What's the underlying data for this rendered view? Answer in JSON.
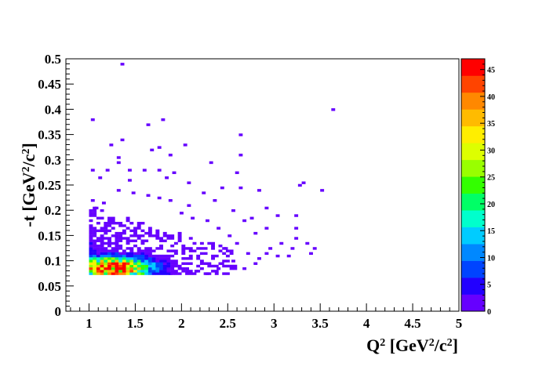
{
  "chart_data": {
    "type": "heatmap",
    "title": "",
    "xlabel": "Q^2 [GeV^2/c^2]",
    "ylabel": "-t [GeV^2/c^2]",
    "xlim": [
      0.75,
      5.0
    ],
    "ylim": [
      0.0,
      0.5
    ],
    "zlim": [
      0,
      47
    ],
    "bin_width_x": 0.04,
    "bin_width_y": 0.005,
    "x_ticks": [
      "1",
      "1.5",
      "2",
      "2.5",
      "3",
      "3.5",
      "4",
      "4.5",
      "5"
    ],
    "x_tick_values": [
      1,
      1.5,
      2,
      2.5,
      3,
      3.5,
      4,
      4.5,
      5
    ],
    "y_ticks": [
      "0",
      "0.05",
      "0.1",
      "0.15",
      "0.2",
      "0.25",
      "0.3",
      "0.35",
      "0.4",
      "0.45",
      "0.5"
    ],
    "y_tick_values": [
      0,
      0.05,
      0.1,
      0.15,
      0.2,
      0.25,
      0.3,
      0.35,
      0.4,
      0.45,
      0.5
    ],
    "palette_ticks": [
      "0",
      "5",
      "10",
      "15",
      "20",
      "25",
      "30",
      "35",
      "40",
      "45"
    ],
    "palette_tick_values": [
      0,
      5,
      10,
      15,
      20,
      25,
      30,
      35,
      40,
      45
    ],
    "palette_colors": [
      "#6600ff",
      "#2200ff",
      "#0044ff",
      "#0088ff",
      "#00ccff",
      "#00ffcc",
      "#00ff66",
      "#33ff00",
      "#99ff00",
      "#ddff00",
      "#ffee00",
      "#ffbb00",
      "#ff8800",
      "#ff4400",
      "#ff0000"
    ],
    "grid": false,
    "legend": "color palette, right",
    "points": [
      [
        1.34,
        0.487,
        1
      ],
      [
        1.02,
        0.377,
        1
      ],
      [
        1.62,
        0.367,
        1
      ],
      [
        1.78,
        0.377,
        1
      ],
      [
        3.62,
        0.397,
        1
      ],
      [
        1.34,
        0.337,
        1
      ],
      [
        2.62,
        0.347,
        1
      ],
      [
        1.22,
        0.327,
        1
      ],
      [
        1.74,
        0.322,
        1
      ],
      [
        2.02,
        0.327,
        1
      ],
      [
        1.66,
        0.317,
        1
      ],
      [
        1.3,
        0.302,
        1
      ],
      [
        1.86,
        0.307,
        1
      ],
      [
        2.62,
        0.307,
        1
      ],
      [
        1.3,
        0.292,
        1
      ],
      [
        2.3,
        0.292,
        1
      ],
      [
        1.02,
        0.277,
        1
      ],
      [
        1.18,
        0.277,
        1
      ],
      [
        1.42,
        0.277,
        1
      ],
      [
        1.58,
        0.277,
        1
      ],
      [
        1.74,
        0.277,
        1
      ],
      [
        1.9,
        0.272,
        1
      ],
      [
        2.58,
        0.272,
        1
      ],
      [
        1.1,
        0.262,
        1
      ],
      [
        1.82,
        0.262,
        1
      ],
      [
        3.3,
        0.252,
        1
      ],
      [
        3.26,
        0.247,
        1
      ],
      [
        1.42,
        0.257,
        1
      ],
      [
        2.06,
        0.252,
        1
      ],
      [
        3.5,
        0.237,
        1
      ],
      [
        2.82,
        0.237,
        1
      ],
      [
        2.42,
        0.242,
        1
      ],
      [
        2.62,
        0.242,
        1
      ],
      [
        1.62,
        0.227,
        1
      ],
      [
        2.22,
        0.232,
        1
      ],
      [
        1.02,
        0.217,
        1
      ],
      [
        1.14,
        0.212,
        1
      ],
      [
        1.06,
        0.202,
        1
      ],
      [
        2.9,
        0.202,
        1
      ],
      [
        2.54,
        0.197,
        1
      ],
      [
        3.02,
        0.187,
        1
      ],
      [
        3.22,
        0.187,
        1
      ],
      [
        2.74,
        0.182,
        1
      ],
      [
        3.22,
        0.162,
        1
      ],
      [
        3.22,
        0.142,
        1
      ],
      [
        3.34,
        0.132,
        1
      ],
      [
        3.42,
        0.122,
        1
      ],
      [
        3.38,
        0.112,
        1
      ],
      [
        3.06,
        0.132,
        1
      ],
      [
        3.18,
        0.122,
        1
      ],
      [
        2.94,
        0.122,
        1
      ],
      [
        2.9,
        0.112,
        1
      ],
      [
        3.02,
        0.107,
        1
      ],
      [
        3.14,
        0.107,
        1
      ],
      [
        2.82,
        0.102,
        1
      ],
      [
        2.78,
        0.092,
        1
      ],
      [
        2.66,
        0.082,
        1
      ],
      [
        2.38,
        0.082,
        1
      ],
      [
        2.42,
        0.092,
        1
      ],
      [
        2.14,
        0.077,
        1
      ],
      [
        2.26,
        0.072,
        1
      ],
      [
        1.86,
        0.072,
        1
      ],
      [
        2.54,
        0.097,
        1
      ],
      [
        2.7,
        0.112,
        1
      ],
      [
        2.5,
        0.147,
        1
      ],
      [
        2.78,
        0.152,
        1
      ],
      [
        2.38,
        0.162,
        1
      ],
      [
        2.26,
        0.177,
        1
      ],
      [
        2.1,
        0.182,
        1
      ],
      [
        1.98,
        0.192,
        1
      ],
      [
        2.06,
        0.207,
        1
      ],
      [
        1.86,
        0.217,
        1
      ],
      [
        1.74,
        0.222,
        1
      ],
      [
        1.46,
        0.232,
        1
      ],
      [
        1.3,
        0.237,
        1
      ],
      [
        2.34,
        0.217,
        1
      ],
      [
        2.66,
        0.177,
        1
      ],
      [
        2.9,
        0.162,
        1
      ],
      [
        2.58,
        0.132,
        1
      ],
      [
        2.46,
        0.122,
        1
      ]
    ]
  }
}
